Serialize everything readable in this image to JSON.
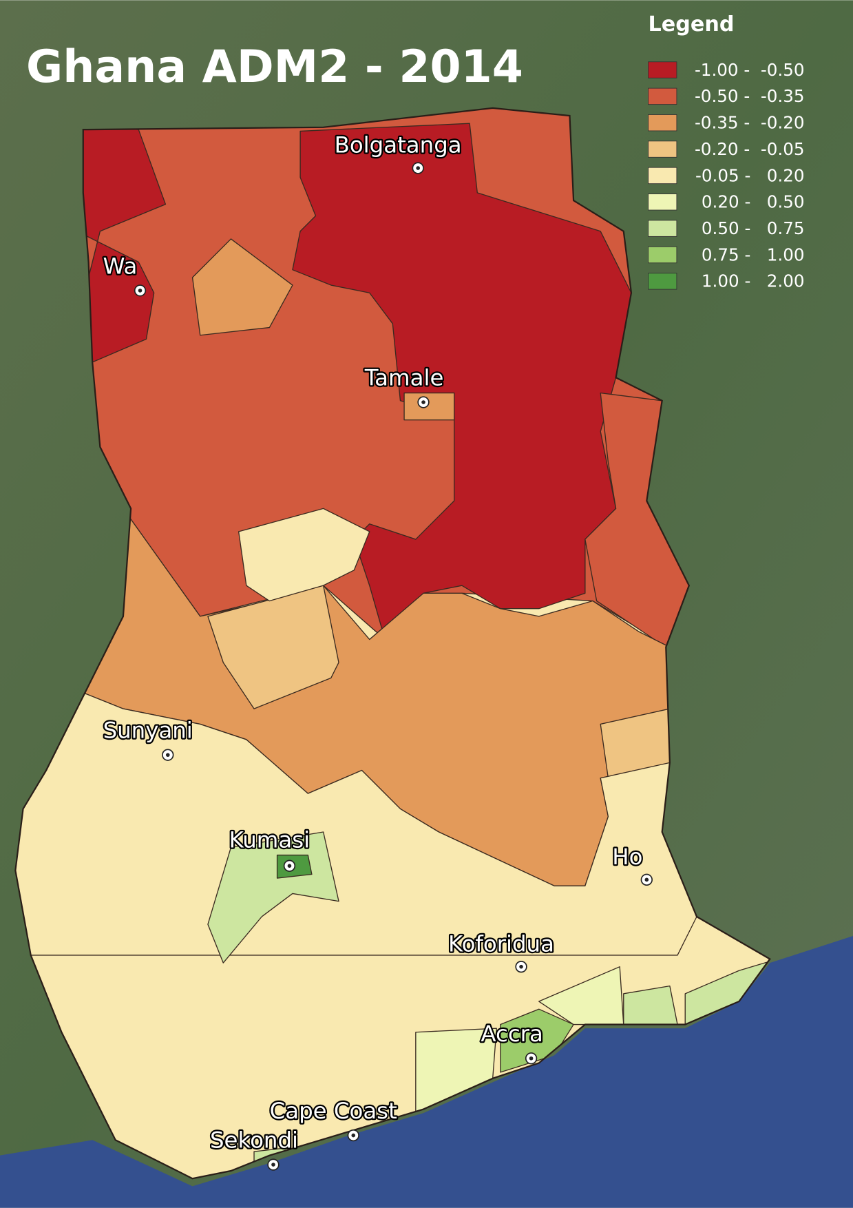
{
  "title": "Ghana ADM2 - 2014",
  "legend": {
    "title": "Legend",
    "items": [
      {
        "label": "-1.00 -  -0.50",
        "color": "#b81c24"
      },
      {
        "label": "-0.50 -  -0.35",
        "color": "#d25a3e"
      },
      {
        "label": "-0.35 -  -0.20",
        "color": "#e39a5a"
      },
      {
        "label": "-0.20 -  -0.05",
        "color": "#efc482"
      },
      {
        "label": "-0.05 -   0.20",
        "color": "#f9e9b0"
      },
      {
        "label": "0.20 -   0.50",
        "color": "#eef5b5"
      },
      {
        "label": "0.50 -   0.75",
        "color": "#cde6a0"
      },
      {
        "label": "0.75 -   1.00",
        "color": "#9ccc6a"
      },
      {
        "label": "1.00 -   2.00",
        "color": "#4e9a40"
      }
    ]
  },
  "cities": [
    "Bolgatanga",
    "Wa",
    "Tamale",
    "Sunyani",
    "Kumasi",
    "Ho",
    "Koforidua",
    "Accra",
    "Cape Coast",
    "Sekondi"
  ]
}
